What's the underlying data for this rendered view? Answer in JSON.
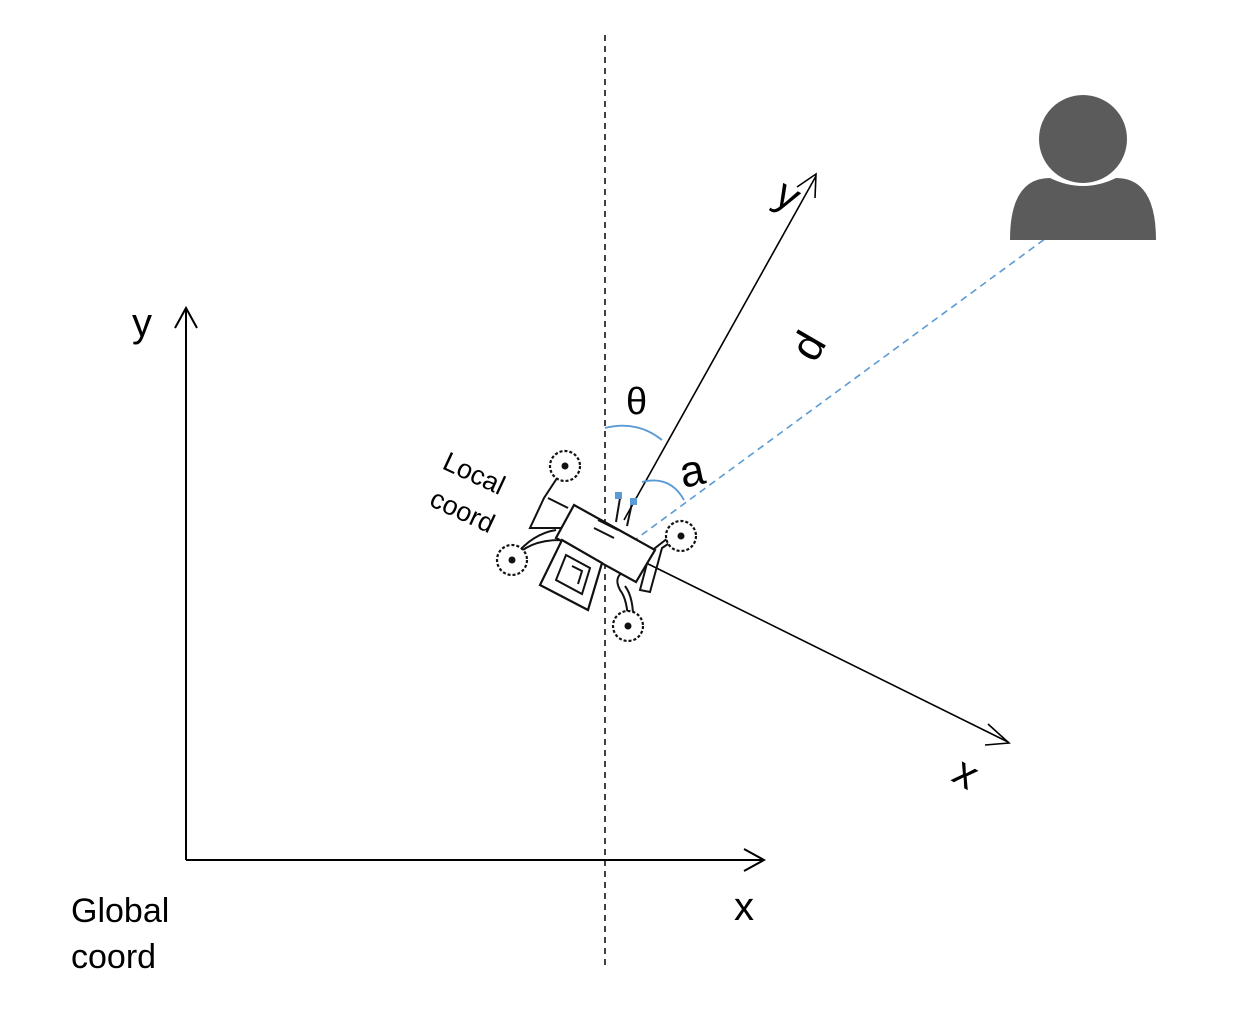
{
  "global_frame": {
    "x_label": "x",
    "y_label": "y",
    "caption_line1": "Global",
    "caption_line2": "coord"
  },
  "local_frame": {
    "x_label": "x",
    "y_label": "y",
    "caption_line1": "Local",
    "caption_line2": "coord"
  },
  "annotations": {
    "theta": "θ",
    "alpha": "a",
    "distance": "d"
  },
  "icons": {
    "robot": "rover-icon",
    "person": "person-icon"
  },
  "colors": {
    "line": "#000000",
    "target_line": "#5b9bd5",
    "person": "#5b5b5b"
  }
}
